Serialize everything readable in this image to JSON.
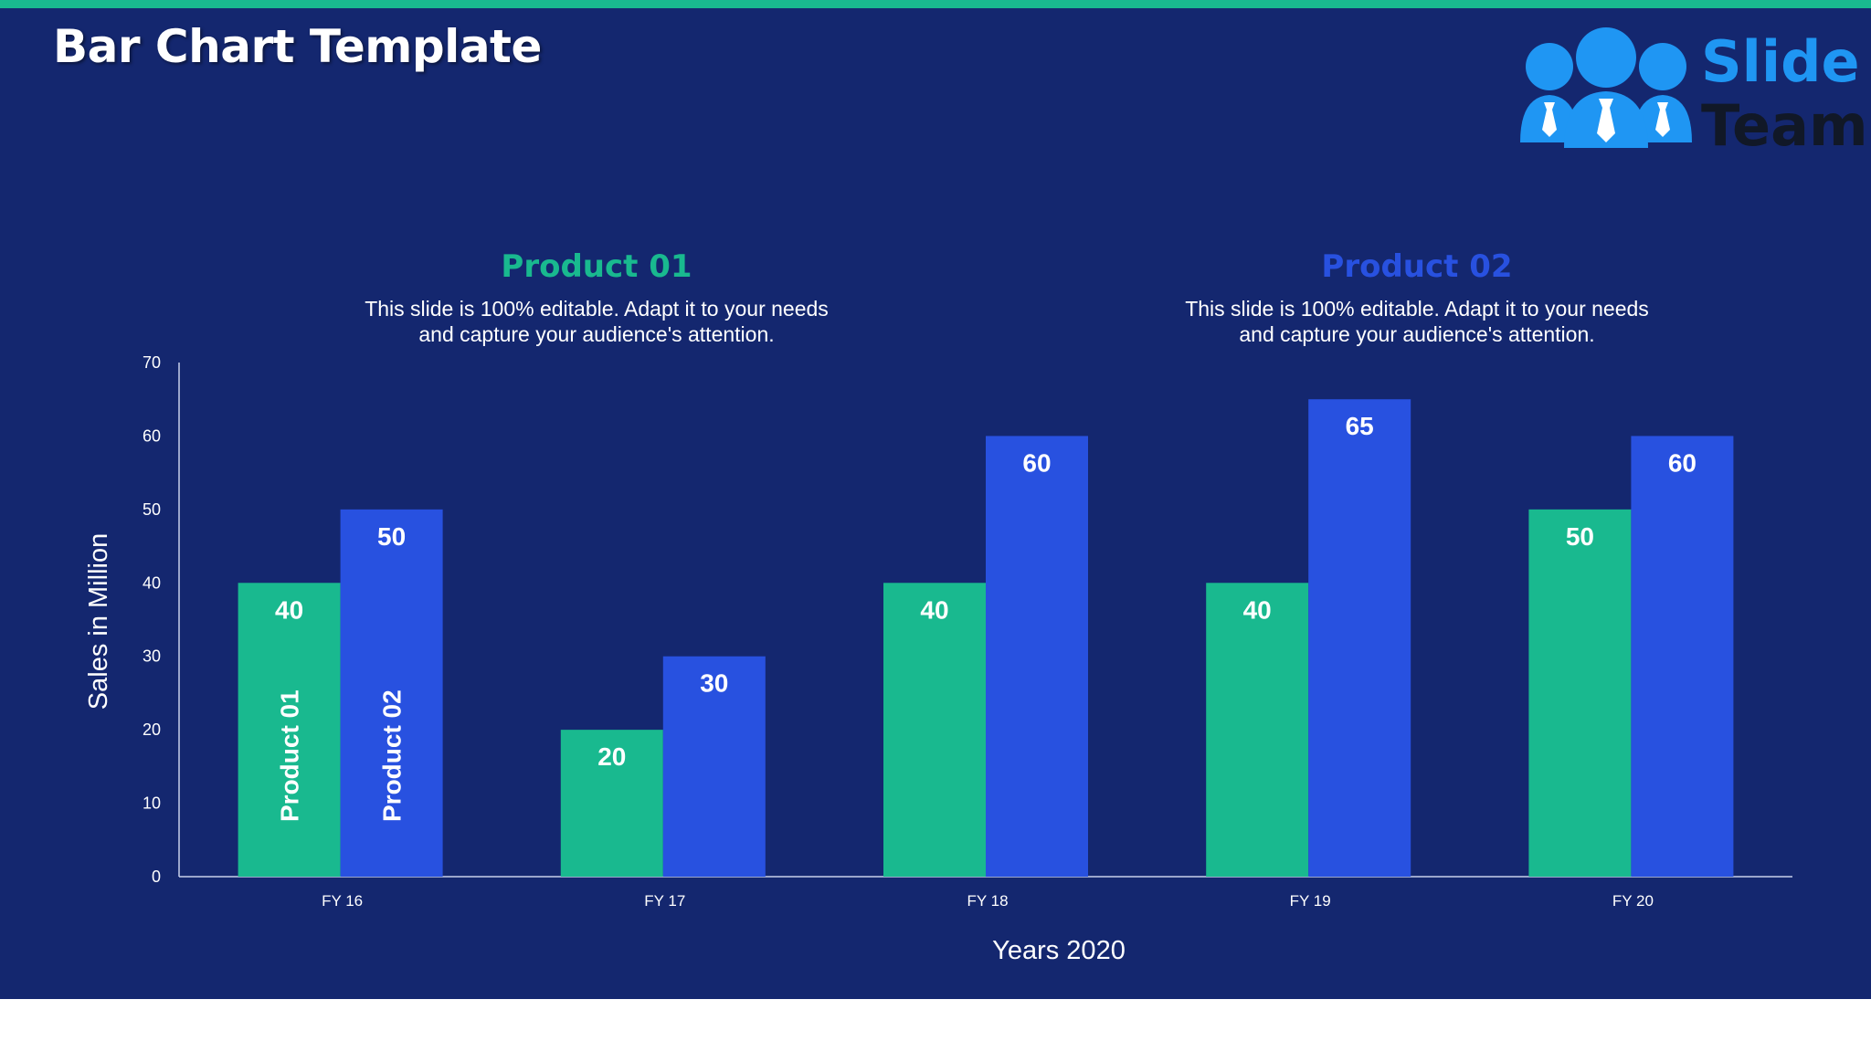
{
  "slide": {
    "title": "Bar Chart Template",
    "logo": {
      "line1": "Slide",
      "line2": "Team"
    },
    "colors": {
      "background": "#14276f",
      "accent_strip": "#19b98f",
      "product_01": "#19b98f",
      "product_02": "#2851e0",
      "logo_blue": "#1f96f3"
    }
  },
  "legend": [
    {
      "title": "Product 01",
      "color": "#19b98f",
      "desc_line1": "This slide is 100% editable. Adapt it to your needs",
      "desc_line2": "and capture your audience's attention."
    },
    {
      "title": "Product 02",
      "color": "#2851e0",
      "desc_line1": "This slide is 100% editable. Adapt it to your needs",
      "desc_line2": "and capture your audience's attention."
    }
  ],
  "chart_data": {
    "type": "bar",
    "title": "",
    "xlabel": "Years 2020",
    "ylabel": "Sales in Million",
    "ylim": [
      0,
      70
    ],
    "yticks": [
      0,
      10,
      20,
      30,
      40,
      50,
      60,
      70
    ],
    "categories": [
      "FY 16",
      "FY 17",
      "FY 18",
      "FY 19",
      "FY 20"
    ],
    "series": [
      {
        "name": "Product 01",
        "color": "#19b98f",
        "values": [
          40,
          20,
          40,
          40,
          50
        ]
      },
      {
        "name": "Product 02",
        "color": "#2851e0",
        "values": [
          50,
          30,
          60,
          65,
          60
        ]
      }
    ],
    "grid": false
  }
}
